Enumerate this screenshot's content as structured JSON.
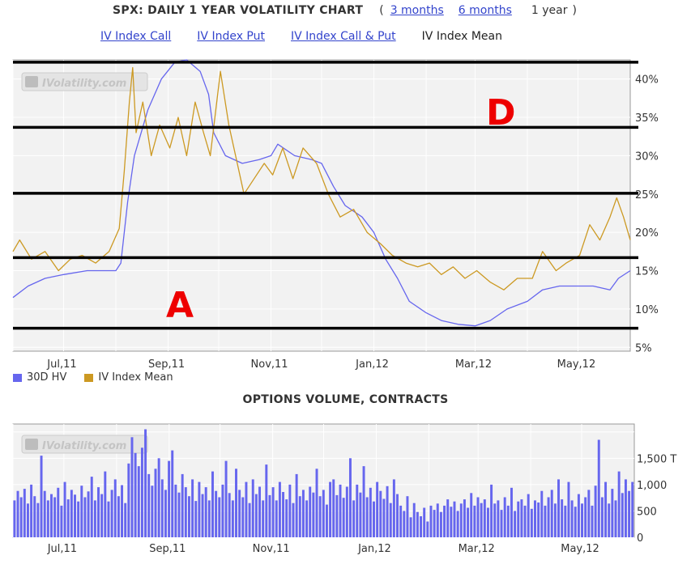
{
  "header": {
    "title": "SPX: DAILY 1 YEAR VOLATILITY CHART",
    "paren_open": "(",
    "paren_close": ")",
    "range_links": [
      "3 months",
      "6 months"
    ],
    "range_current": "1 year"
  },
  "iv_tabs": {
    "call": "IV Index Call",
    "put": "IV Index Put",
    "call_put": "IV Index Call & Put",
    "mean": "IV Index Mean"
  },
  "watermark": "IVolatility.com",
  "annotations": {
    "upper": "D",
    "lower": "A"
  },
  "colors": {
    "hv": "#6666ee",
    "iv": "#cc9922",
    "volume": "#6666ee",
    "annotation": "#ee0000",
    "band_line": "#000000",
    "plot_bg": "#f2f2f2"
  },
  "volume_title": "OPTIONS VOLUME, CONTRACTS",
  "chart_data": [
    {
      "type": "line",
      "title": "SPX: DAILY 1 YEAR VOLATILITY CHART",
      "x_labels": [
        "Jul,11",
        "Sep,11",
        "Nov,11",
        "Jan,12",
        "Mar,12",
        "May,12"
      ],
      "x_range": [
        "2011-06-01",
        "2012-06-01"
      ],
      "y_ticks": [
        "5%",
        "10%",
        "15%",
        "20%",
        "25%",
        "30%",
        "35%",
        "40%"
      ],
      "ylim": [
        4.5,
        42.5
      ],
      "grid": true,
      "legend_position": "bottom-left",
      "horizontal_lines": [
        7.5,
        16.7,
        25.1,
        33.7,
        42.2
      ],
      "series": [
        {
          "name": "30D HV",
          "points": [
            [
              "2011-06-01",
              11.5
            ],
            [
              "2011-06-10",
              13
            ],
            [
              "2011-06-20",
              14
            ],
            [
              "2011-07-01",
              14.5
            ],
            [
              "2011-07-15",
              15
            ],
            [
              "2011-07-25",
              15
            ],
            [
              "2011-08-01",
              15
            ],
            [
              "2011-08-04",
              16
            ],
            [
              "2011-08-08",
              24
            ],
            [
              "2011-08-12",
              30
            ],
            [
              "2011-08-20",
              36
            ],
            [
              "2011-08-28",
              40
            ],
            [
              "2011-09-05",
              42.2
            ],
            [
              "2011-09-12",
              42.5
            ],
            [
              "2011-09-20",
              41
            ],
            [
              "2011-09-25",
              38
            ],
            [
              "2011-09-28",
              33
            ],
            [
              "2011-10-05",
              30
            ],
            [
              "2011-10-15",
              29
            ],
            [
              "2011-10-25",
              29.5
            ],
            [
              "2011-11-01",
              30
            ],
            [
              "2011-11-05",
              31.5
            ],
            [
              "2011-11-15",
              30
            ],
            [
              "2011-11-25",
              29.5
            ],
            [
              "2011-12-01",
              29
            ],
            [
              "2011-12-08",
              26
            ],
            [
              "2011-12-15",
              23.5
            ],
            [
              "2011-12-25",
              22
            ],
            [
              "2012-01-01",
              20
            ],
            [
              "2012-01-08",
              16.5
            ],
            [
              "2012-01-15",
              14
            ],
            [
              "2012-01-22",
              11
            ],
            [
              "2012-02-01",
              9.5
            ],
            [
              "2012-02-10",
              8.5
            ],
            [
              "2012-02-20",
              8
            ],
            [
              "2012-03-01",
              7.8
            ],
            [
              "2012-03-10",
              8.5
            ],
            [
              "2012-03-20",
              10
            ],
            [
              "2012-04-01",
              11
            ],
            [
              "2012-04-10",
              12.5
            ],
            [
              "2012-04-20",
              13
            ],
            [
              "2012-05-01",
              13
            ],
            [
              "2012-05-10",
              13
            ],
            [
              "2012-05-20",
              12.5
            ],
            [
              "2012-05-25",
              14
            ],
            [
              "2012-06-01",
              15
            ]
          ]
        },
        {
          "name": "IV Index Mean",
          "points": [
            [
              "2011-06-01",
              17.5
            ],
            [
              "2011-06-05",
              19
            ],
            [
              "2011-06-12",
              16.5
            ],
            [
              "2011-06-20",
              17.5
            ],
            [
              "2011-06-28",
              15
            ],
            [
              "2011-07-05",
              16.5
            ],
            [
              "2011-07-12",
              17
            ],
            [
              "2011-07-20",
              16
            ],
            [
              "2011-07-28",
              17.5
            ],
            [
              "2011-08-03",
              20.5
            ],
            [
              "2011-08-06",
              28
            ],
            [
              "2011-08-09",
              37
            ],
            [
              "2011-08-11",
              41.5
            ],
            [
              "2011-08-13",
              33
            ],
            [
              "2011-08-17",
              37
            ],
            [
              "2011-08-22",
              30
            ],
            [
              "2011-08-27",
              34
            ],
            [
              "2011-09-02",
              31
            ],
            [
              "2011-09-07",
              35
            ],
            [
              "2011-09-12",
              30
            ],
            [
              "2011-09-17",
              37
            ],
            [
              "2011-09-22",
              33
            ],
            [
              "2011-09-26",
              30
            ],
            [
              "2011-10-02",
              41
            ],
            [
              "2011-10-07",
              34
            ],
            [
              "2011-10-12",
              29
            ],
            [
              "2011-10-16",
              25
            ],
            [
              "2011-10-22",
              27
            ],
            [
              "2011-10-28",
              29
            ],
            [
              "2011-11-02",
              27.5
            ],
            [
              "2011-11-08",
              31
            ],
            [
              "2011-11-14",
              27
            ],
            [
              "2011-11-20",
              31
            ],
            [
              "2011-11-28",
              29
            ],
            [
              "2011-12-05",
              25
            ],
            [
              "2011-12-12",
              22
            ],
            [
              "2011-12-20",
              23
            ],
            [
              "2011-12-28",
              20
            ],
            [
              "2012-01-05",
              18.5
            ],
            [
              "2012-01-12",
              17
            ],
            [
              "2012-01-20",
              16
            ],
            [
              "2012-01-27",
              15.5
            ],
            [
              "2012-02-03",
              16
            ],
            [
              "2012-02-10",
              14.5
            ],
            [
              "2012-02-17",
              15.5
            ],
            [
              "2012-02-24",
              14
            ],
            [
              "2012-03-02",
              15
            ],
            [
              "2012-03-10",
              13.5
            ],
            [
              "2012-03-18",
              12.5
            ],
            [
              "2012-03-26",
              14
            ],
            [
              "2012-04-04",
              14
            ],
            [
              "2012-04-10",
              17.5
            ],
            [
              "2012-04-18",
              15
            ],
            [
              "2012-04-24",
              16
            ],
            [
              "2012-05-02",
              17
            ],
            [
              "2012-05-08",
              21
            ],
            [
              "2012-05-14",
              19
            ],
            [
              "2012-05-20",
              22
            ],
            [
              "2012-05-24",
              24.5
            ],
            [
              "2012-05-28",
              22
            ],
            [
              "2012-06-01",
              19
            ]
          ]
        }
      ]
    },
    {
      "type": "bar",
      "title": "OPTIONS VOLUME, CONTRACTS",
      "x_labels": [
        "Jul,11",
        "Sep,11",
        "Nov,11",
        "Jan,12",
        "Mar,12",
        "May,12"
      ],
      "y_ticks": [
        "0",
        "500",
        "1,000",
        "1,500 T"
      ],
      "ylim": [
        0,
        2150
      ],
      "values": [
        700,
        880,
        760,
        920,
        640,
        1000,
        780,
        650,
        1550,
        880,
        700,
        820,
        760,
        940,
        600,
        1050,
        720,
        900,
        810,
        680,
        980,
        760,
        870,
        1150,
        700,
        950,
        820,
        1250,
        680,
        900,
        1100,
        780,
        990,
        650,
        1400,
        1900,
        1600,
        1350,
        1700,
        2050,
        1200,
        980,
        1300,
        1500,
        1100,
        900,
        1450,
        1650,
        1000,
        850,
        1200,
        950,
        780,
        1100,
        690,
        1050,
        820,
        950,
        700,
        1250,
        880,
        760,
        1000,
        1450,
        840,
        700,
        1300,
        900,
        760,
        1050,
        650,
        1100,
        820,
        960,
        700,
        1380,
        800,
        950,
        700,
        1050,
        860,
        720,
        1000,
        650,
        1200,
        780,
        900,
        700,
        960,
        850,
        1300,
        780,
        900,
        620,
        1050,
        1100,
        800,
        1000,
        750,
        960,
        1500,
        700,
        1000,
        850,
        1350,
        760,
        940,
        680,
        1050,
        880,
        730,
        970,
        650,
        1100,
        820,
        600,
        500,
        780,
        380,
        650,
        480,
        400,
        560,
        300,
        600,
        520,
        640,
        480,
        600,
        720,
        580,
        680,
        500,
        640,
        720,
        560,
        840,
        600,
        760,
        650,
        720,
        560,
        1000,
        640,
        700,
        520,
        760,
        600,
        940,
        500,
        680,
        720,
        600,
        820,
        540,
        700,
        660,
        880,
        600,
        760,
        900,
        640,
        1100,
        720,
        600,
        1050,
        700,
        580,
        820,
        640,
        760,
        900,
        600,
        980,
        1850,
        760,
        1050,
        640,
        920,
        700,
        1250,
        840,
        1100,
        880,
        1050
      ]
    }
  ]
}
